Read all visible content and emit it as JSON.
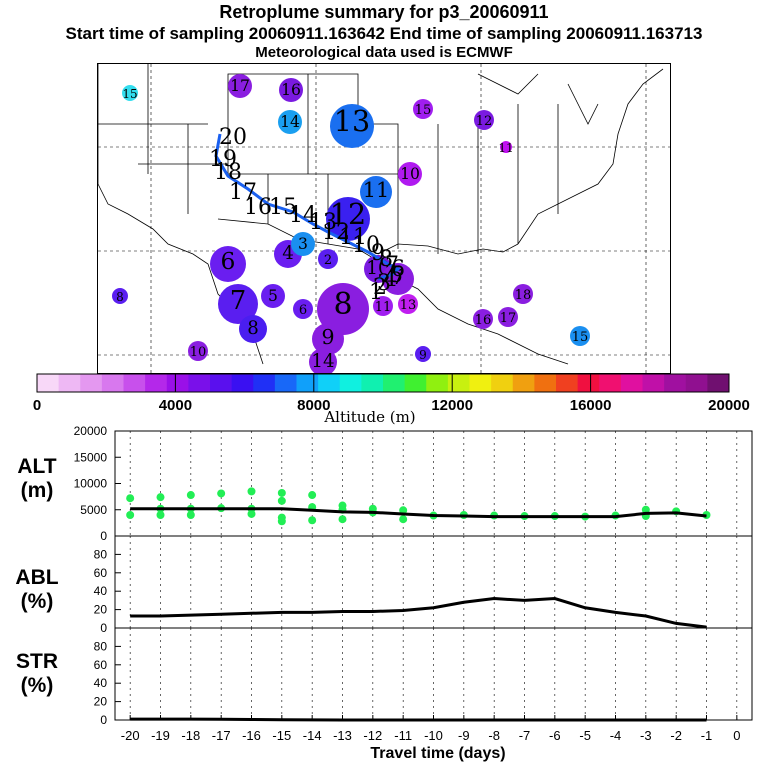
{
  "title": "Retroplume summary for p3_20060911",
  "subtitle": "Start time of sampling 20060911.163642     End time of sampling 20060911.163713",
  "met_note": "Meteorological data used is ECMWF",
  "map_labels": [
    {
      "t": "15",
      "c": "#33ddee",
      "s": 8
    },
    {
      "t": "17",
      "c": "#8a1ee0",
      "s": 12
    },
    {
      "t": "16",
      "c": "#7a1ae0",
      "s": 12
    },
    {
      "t": "14",
      "c": "#1a9ff0",
      "s": 12
    },
    {
      "t": "13",
      "c": "#1a6ff0",
      "s": 22
    },
    {
      "t": "15",
      "c": "#a01ef0",
      "s": 10
    },
    {
      "t": "12",
      "c": "#7a1ae0",
      "s": 10
    },
    {
      "t": "11",
      "c": "#c00ff0",
      "s": 6
    },
    {
      "t": "11",
      "c": "#1a6ff0",
      "s": 16
    },
    {
      "t": "10",
      "c": "#b01af0",
      "s": 12
    },
    {
      "t": "12",
      "c": "#3a20f0",
      "s": 22
    },
    {
      "t": "6",
      "c": "#6a1ef0",
      "s": 18
    },
    {
      "t": "4",
      "c": "#6a1ef0",
      "s": 14
    },
    {
      "t": "3",
      "c": "#1a8ff0",
      "s": 12
    },
    {
      "t": "2",
      "c": "#5a1ef0",
      "s": 10
    },
    {
      "t": "5",
      "c": "#6a1ef0",
      "s": 12
    },
    {
      "t": "7",
      "c": "#5a1ef0",
      "s": 20
    },
    {
      "t": "8",
      "c": "#4a1ef0",
      "s": 14
    },
    {
      "t": "6",
      "c": "#6a1ef0",
      "s": 10
    },
    {
      "t": "8",
      "c": "#8a1ee0",
      "s": 26
    },
    {
      "t": "9",
      "c": "#8a1ee0",
      "s": 16
    },
    {
      "t": "14",
      "c": "#8a1ee0",
      "s": 14
    },
    {
      "t": "10",
      "c": "#7a1ae0",
      "s": 14
    },
    {
      "t": "9",
      "c": "#5a1ef0",
      "s": 8
    },
    {
      "t": "10",
      "c": "#8a1ee0",
      "s": 10
    },
    {
      "t": "8",
      "c": "#5a1ef0",
      "s": 8
    },
    {
      "t": "7",
      "c": "#8a1ee0",
      "s": 16
    },
    {
      "t": "11",
      "c": "#a01ef0",
      "s": 10
    },
    {
      "t": "13",
      "c": "#c01ef0",
      "s": 10
    },
    {
      "t": "18",
      "c": "#8a1ee0",
      "s": 10
    },
    {
      "t": "17",
      "c": "#8a1ee0",
      "s": 10
    },
    {
      "t": "16",
      "c": "#8a1ee0",
      "s": 10
    },
    {
      "t": "15",
      "c": "#1a8ff0",
      "s": 10
    }
  ],
  "track_labels": [
    "20",
    "19",
    "18",
    "17",
    "16",
    "15",
    "14",
    "13",
    "12",
    "11",
    "10",
    "9",
    "8",
    "7",
    "6",
    "5",
    "4",
    "3",
    "2",
    "1"
  ],
  "colorbar": {
    "label": "Altitude (m)",
    "ticks": [
      "0",
      "4000",
      "8000",
      "12000",
      "16000",
      "20000"
    ],
    "colors": [
      "#f8d8f8",
      "#eeb8f4",
      "#e498f0",
      "#d878ee",
      "#c850ec",
      "#b428ea",
      "#9a10e8",
      "#7a10ea",
      "#5a10ee",
      "#3a10f2",
      "#2030f6",
      "#1868f8",
      "#10a0fa",
      "#10d0f8",
      "#10f0e0",
      "#10f0b0",
      "#20f070",
      "#40f030",
      "#90f010",
      "#c8f010",
      "#f0f010",
      "#f0d010",
      "#f0a010",
      "#f07010",
      "#f04020",
      "#f01040",
      "#f01070",
      "#e010a0",
      "#c010a8",
      "#a010a0",
      "#901090",
      "#701070"
    ]
  },
  "chart_data": [
    {
      "type": "line",
      "name": "ALT",
      "ylabel": "ALT (m)",
      "x": [
        -20,
        -19,
        -18,
        -17,
        -16,
        -15,
        -14,
        -13,
        -12,
        -11,
        -10,
        -9,
        -8,
        -7,
        -6,
        -5,
        -4,
        -3,
        -2,
        -1
      ],
      "series": [
        {
          "name": "median altitude",
          "values": [
            5200,
            5200,
            5200,
            5200,
            5200,
            5200,
            4900,
            4600,
            4500,
            4200,
            3900,
            3800,
            3700,
            3700,
            3700,
            3700,
            3700,
            4300,
            4400,
            3800
          ]
        }
      ],
      "scatter": [
        {
          "x": -20,
          "y": 7200
        },
        {
          "x": -20,
          "y": 4000
        },
        {
          "x": -19,
          "y": 7400
        },
        {
          "x": -19,
          "y": 5200
        },
        {
          "x": -19,
          "y": 4000
        },
        {
          "x": -18,
          "y": 7800
        },
        {
          "x": -18,
          "y": 5200
        },
        {
          "x": -18,
          "y": 4000
        },
        {
          "x": -17,
          "y": 8100
        },
        {
          "x": -17,
          "y": 5300
        },
        {
          "x": -16,
          "y": 8500
        },
        {
          "x": -16,
          "y": 5200
        },
        {
          "x": -16,
          "y": 4200
        },
        {
          "x": -15,
          "y": 8200
        },
        {
          "x": -15,
          "y": 6700
        },
        {
          "x": -15,
          "y": 3500
        },
        {
          "x": -15,
          "y": 2800
        },
        {
          "x": -14,
          "y": 7800
        },
        {
          "x": -14,
          "y": 5500
        },
        {
          "x": -14,
          "y": 3000
        },
        {
          "x": -13,
          "y": 5800
        },
        {
          "x": -13,
          "y": 5000
        },
        {
          "x": -13,
          "y": 3200
        },
        {
          "x": -12,
          "y": 5200
        },
        {
          "x": -12,
          "y": 4500
        },
        {
          "x": -11,
          "y": 4900
        },
        {
          "x": -11,
          "y": 3200
        },
        {
          "x": -10,
          "y": 3900
        },
        {
          "x": -9,
          "y": 4000
        },
        {
          "x": -8,
          "y": 3900
        },
        {
          "x": -7,
          "y": 3800
        },
        {
          "x": -6,
          "y": 3800
        },
        {
          "x": -5,
          "y": 3700
        },
        {
          "x": -4,
          "y": 3900
        },
        {
          "x": -3,
          "y": 5000
        },
        {
          "x": -3,
          "y": 3800
        },
        {
          "x": -2,
          "y": 4700
        },
        {
          "x": -1,
          "y": 4000
        }
      ],
      "ylim": [
        0,
        20000
      ],
      "yticks": [
        "20000",
        "15000",
        "10000",
        "5000",
        "0"
      ]
    },
    {
      "type": "line",
      "name": "ABL",
      "ylabel": "ABL (%)",
      "x": [
        -20,
        -19,
        -18,
        -17,
        -16,
        -15,
        -14,
        -13,
        -12,
        -11,
        -10,
        -9,
        -8,
        -7,
        -6,
        -5,
        -4,
        -3,
        -2,
        -1
      ],
      "series": [
        {
          "name": "fraction in ABL",
          "values": [
            13,
            13,
            14,
            15,
            16,
            17,
            17,
            18,
            18,
            19,
            22,
            28,
            32,
            30,
            32,
            22,
            17,
            13,
            5,
            1
          ]
        }
      ],
      "ylim": [
        0,
        100
      ],
      "yticks": [
        "80",
        "60",
        "40",
        "20",
        "0"
      ]
    },
    {
      "type": "line",
      "name": "STR",
      "ylabel": "STR (%)",
      "x": [
        -20,
        -19,
        -18,
        -17,
        -16,
        -15,
        -14,
        -13,
        -12,
        -11,
        -10,
        -9,
        -8,
        -7,
        -6,
        -5,
        -4,
        -3,
        -2,
        -1
      ],
      "series": [
        {
          "name": "fraction in stratosphere",
          "values": [
            1,
            1,
            1,
            0.8,
            0.5,
            0.3,
            0.1,
            0,
            0,
            0,
            0,
            0,
            0,
            0,
            0,
            0,
            0,
            0,
            0,
            0
          ]
        }
      ],
      "ylim": [
        0,
        100
      ],
      "yticks": [
        "80",
        "60",
        "40",
        "20",
        "0"
      ],
      "xticks": [
        "-20",
        "-19",
        "-18",
        "-17",
        "-16",
        "-15",
        "-14",
        "-13",
        "-12",
        "-11",
        "-10",
        "-9",
        "-8",
        "-7",
        "-6",
        "-5",
        "-4",
        "-3",
        "-2",
        "-1",
        "0"
      ],
      "xlabel": "Travel time (days)"
    }
  ],
  "colors": {
    "line": "#000000",
    "scatter": "#22ee55",
    "track": "#1a60f0"
  }
}
